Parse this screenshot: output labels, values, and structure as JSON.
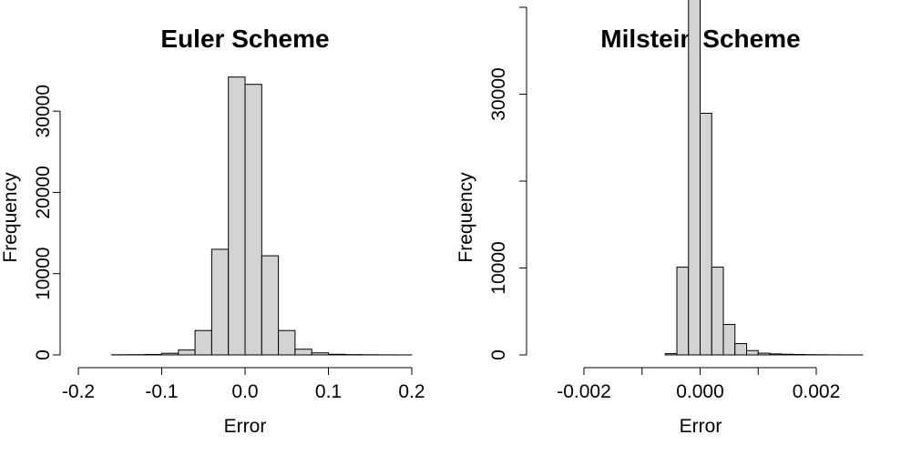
{
  "chart_data": [
    {
      "type": "bar",
      "title": "Euler Scheme",
      "xlabel": "Error",
      "ylabel": "Frequency",
      "xlim": [
        -0.2,
        0.2
      ],
      "ylim": [
        0,
        34500
      ],
      "x_ticks": [
        -0.2,
        -0.1,
        0.0,
        0.1,
        0.2
      ],
      "x_tick_labels": [
        "-0.2",
        "-0.1",
        "0.0",
        "0.1",
        "0.2"
      ],
      "y_ticks": [
        0,
        10000,
        20000,
        30000
      ],
      "y_tick_labels": [
        "0",
        "10000",
        "20000",
        "30000"
      ],
      "bin_edges": [
        -0.16,
        -0.14,
        -0.12,
        -0.1,
        -0.08,
        -0.06,
        -0.04,
        -0.02,
        0.0,
        0.02,
        0.04,
        0.06,
        0.08,
        0.1,
        0.12,
        0.14,
        0.16,
        0.18,
        0.2
      ],
      "values": [
        20,
        30,
        60,
        200,
        600,
        3000,
        13000,
        34200,
        33300,
        12200,
        3000,
        700,
        250,
        80,
        40,
        20,
        10,
        5
      ],
      "grid": false
    },
    {
      "type": "bar",
      "title": "Milstein Scheme",
      "xlabel": "Error",
      "ylabel": "Frequency",
      "xlim": [
        -0.002,
        0.0028
      ],
      "ylim": [
        0,
        40000
      ],
      "x_ticks": [
        -0.002,
        -0.001,
        0.0,
        0.001,
        0.002
      ],
      "x_tick_labels": [
        "-0.002",
        "",
        "0.000",
        "",
        "0.002"
      ],
      "y_ticks": [
        0,
        10000,
        20000,
        30000,
        40000
      ],
      "y_tick_labels": [
        "0",
        "10000",
        "",
        "30000",
        ""
      ],
      "bin_edges": [
        -0.0006,
        -0.0004,
        -0.0002,
        0.0,
        0.0002,
        0.0004,
        0.0006,
        0.0008,
        0.001,
        0.0012,
        0.0014,
        0.0016,
        0.0018,
        0.002,
        0.0022,
        0.0024,
        0.0026,
        0.0028
      ],
      "values": [
        150,
        10100,
        46800,
        27800,
        10100,
        3500,
        1300,
        500,
        200,
        120,
        80,
        50,
        30,
        20,
        10,
        5,
        5
      ],
      "grid": false
    }
  ]
}
